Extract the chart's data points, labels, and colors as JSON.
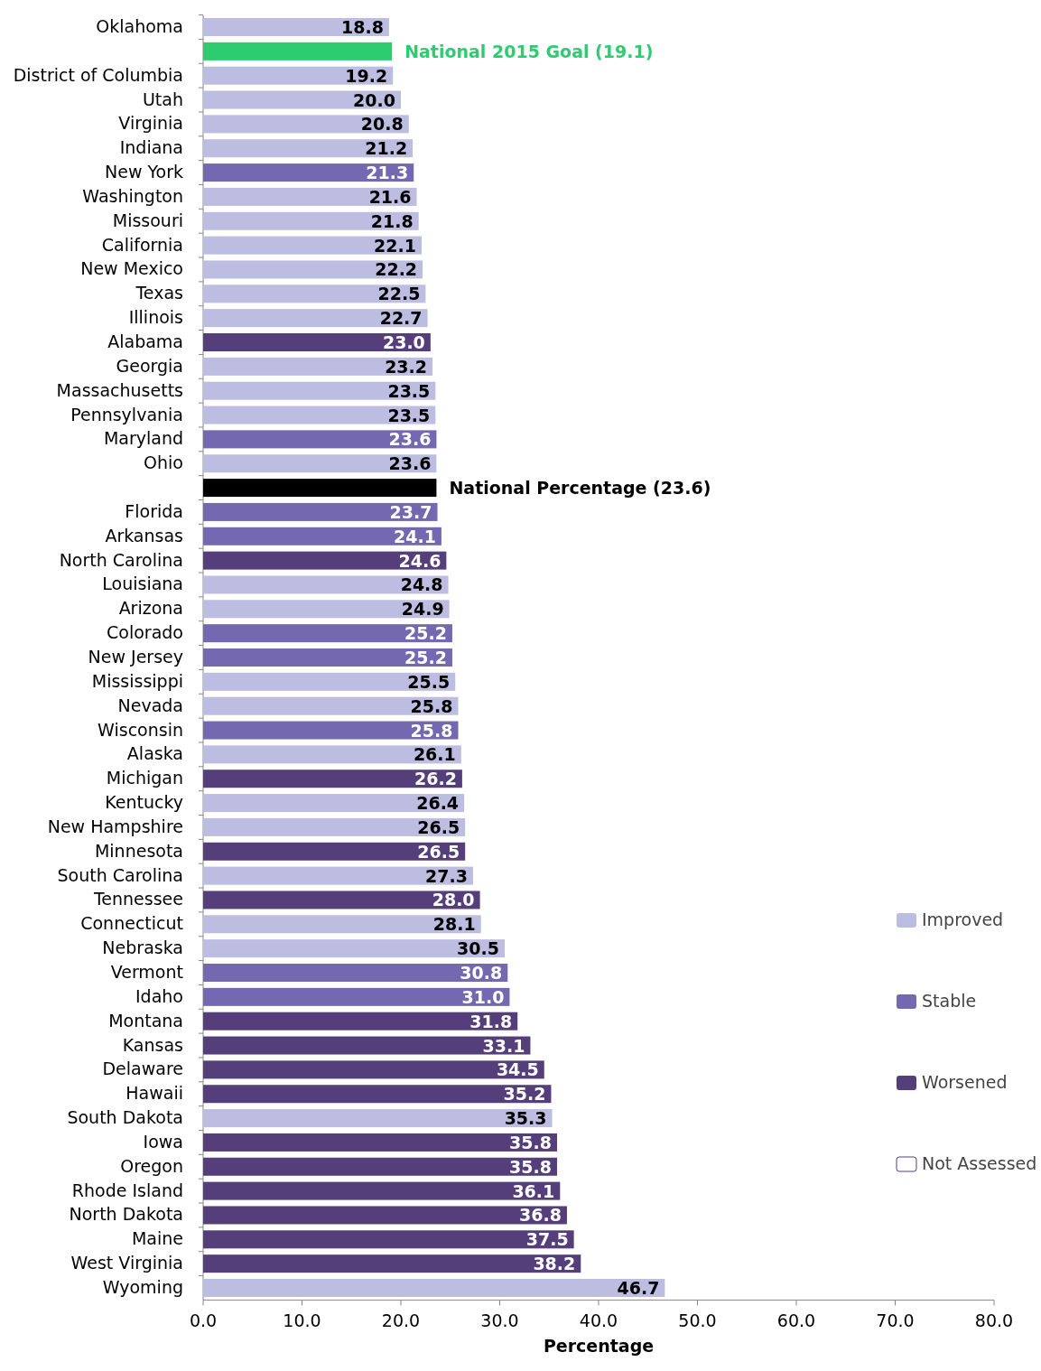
{
  "chart_data": {
    "type": "bar",
    "orientation": "horizontal",
    "xlabel": "Percentage",
    "legend": "right",
    "grid": false,
    "categories": [
      "Oklahoma",
      null,
      "District of Columbia",
      "Utah",
      "Virginia",
      "Indiana",
      "New York",
      "Washington",
      "Missouri",
      "California",
      "New Mexico",
      "Texas",
      "Illinois",
      "Alabama",
      "Georgia",
      "Massachusetts",
      "Pennsylvania",
      "Maryland",
      "Ohio",
      null,
      "Florida",
      "Arkansas",
      "North Carolina",
      "Louisiana",
      "Arizona",
      "Colorado",
      "New Jersey",
      "Mississippi",
      "Nevada",
      "Wisconsin",
      "Alaska",
      "Michigan",
      "Kentucky",
      "New Hampshire",
      "Minnesota",
      "South Carolina",
      "Tennessee",
      "Connecticut",
      "Nebraska",
      "Vermont",
      "Idaho",
      "Montana",
      "Kansas",
      "Delaware",
      "Hawaii",
      "South Dakota",
      "Iowa",
      "Oregon",
      "Rhode Island",
      "North Dakota",
      "Maine",
      "West Virginia",
      "Wyoming"
    ],
    "xlim": [
      0,
      80
    ],
    "xticks": [
      {
        "value": 0,
        "label": "0.0"
      },
      {
        "value": 10,
        "label": "10.0"
      },
      {
        "value": 20,
        "label": "20.0"
      },
      {
        "value": 30,
        "label": "30.0"
      },
      {
        "value": 40,
        "label": "40.0"
      },
      {
        "value": 50,
        "label": "50.0"
      },
      {
        "value": 60,
        "label": "60.0"
      },
      {
        "value": 70,
        "label": "70.0"
      },
      {
        "value": 80,
        "label": "80.0"
      }
    ],
    "series": [
      {
        "name": "Improved",
        "color": "#bcbde0",
        "values": [
          18.8,
          null,
          19.2,
          20.0,
          20.8,
          21.2,
          null,
          21.6,
          21.8,
          22.1,
          22.2,
          22.5,
          22.7,
          null,
          23.2,
          23.5,
          23.5,
          null,
          23.6,
          null,
          null,
          null,
          null,
          24.8,
          24.9,
          null,
          null,
          25.5,
          25.8,
          null,
          26.1,
          null,
          26.4,
          26.5,
          null,
          27.3,
          null,
          28.1,
          30.5,
          null,
          null,
          null,
          null,
          null,
          null,
          35.3,
          null,
          null,
          null,
          null,
          null,
          null,
          46.7
        ],
        "value_labels": [
          "18.8",
          null,
          "19.2",
          "20.0",
          "20.8",
          "21.2",
          null,
          "21.6",
          "21.8",
          "22.1",
          "22.2",
          "22.5",
          "22.7",
          null,
          "23.2",
          "23.5",
          "23.5",
          null,
          "23.6",
          null,
          null,
          null,
          null,
          "24.8",
          "24.9",
          null,
          null,
          "25.5",
          "25.8",
          null,
          "26.1",
          null,
          "26.4",
          "26.5",
          null,
          "27.3",
          null,
          "28.1",
          "30.5",
          null,
          null,
          null,
          null,
          null,
          null,
          "35.3",
          null,
          null,
          null,
          null,
          null,
          null,
          "46.7"
        ]
      },
      {
        "name": "Stable",
        "color": "#7469b0",
        "values": [
          null,
          null,
          null,
          null,
          null,
          null,
          21.3,
          null,
          null,
          null,
          null,
          null,
          null,
          null,
          null,
          null,
          null,
          23.6,
          null,
          null,
          23.7,
          24.1,
          null,
          null,
          null,
          25.2,
          25.2,
          null,
          null,
          25.8,
          null,
          null,
          null,
          null,
          null,
          null,
          null,
          null,
          null,
          30.8,
          31.0,
          null,
          null,
          null,
          null,
          null,
          null,
          null,
          null,
          null,
          null,
          null,
          null
        ],
        "value_labels": [
          null,
          null,
          null,
          null,
          null,
          null,
          "21.3",
          null,
          null,
          null,
          null,
          null,
          null,
          null,
          null,
          null,
          null,
          "23.6",
          null,
          null,
          "23.7",
          "24.1",
          null,
          null,
          null,
          "25.2",
          "25.2",
          null,
          null,
          "25.8",
          null,
          null,
          null,
          null,
          null,
          null,
          null,
          null,
          null,
          "30.8",
          "31.0",
          null,
          null,
          null,
          null,
          null,
          null,
          null,
          null,
          null,
          null,
          null,
          null
        ]
      },
      {
        "name": "Worsened",
        "color": "#553f7a",
        "values": [
          null,
          null,
          null,
          null,
          null,
          null,
          null,
          null,
          null,
          null,
          null,
          null,
          null,
          23.0,
          null,
          null,
          null,
          null,
          null,
          null,
          null,
          null,
          24.6,
          null,
          null,
          null,
          null,
          null,
          null,
          null,
          null,
          26.2,
          null,
          null,
          26.5,
          null,
          28.0,
          null,
          null,
          null,
          null,
          31.8,
          33.1,
          34.5,
          35.2,
          null,
          35.8,
          35.8,
          36.1,
          36.8,
          37.5,
          38.2,
          null
        ],
        "value_labels": [
          null,
          null,
          null,
          null,
          null,
          null,
          null,
          null,
          null,
          null,
          null,
          null,
          null,
          "23.0",
          null,
          null,
          null,
          null,
          null,
          null,
          null,
          null,
          "24.6",
          null,
          null,
          null,
          null,
          null,
          null,
          null,
          null,
          "26.2",
          null,
          null,
          "26.5",
          null,
          "28.0",
          null,
          null,
          null,
          null,
          "31.8",
          "33.1",
          "34.5",
          "35.2",
          null,
          "35.8",
          "35.8",
          "36.1",
          "36.8",
          "37.5",
          "38.2",
          null
        ]
      },
      {
        "name": "Not Assessed",
        "color": "#ffffff",
        "values": [
          null,
          null,
          null,
          null,
          null,
          null,
          null,
          null,
          null,
          null,
          null,
          null,
          null,
          null,
          null,
          null,
          null,
          null,
          null,
          null,
          null,
          null,
          null,
          null,
          null,
          null,
          null,
          null,
          null,
          null,
          null,
          null,
          null,
          null,
          null,
          null,
          null,
          null,
          null,
          null,
          null,
          null,
          null,
          null,
          null,
          null,
          null,
          null,
          null,
          null,
          null,
          null,
          null
        ]
      },
      {
        "color": "#2ecc71",
        "values": [
          null,
          19.1,
          null,
          null,
          null,
          null,
          null,
          null,
          null,
          null,
          null,
          null,
          null,
          null,
          null,
          null,
          null,
          null,
          null,
          null,
          null,
          null,
          null,
          null,
          null,
          null,
          null,
          null,
          null,
          null,
          null,
          null,
          null,
          null,
          null,
          null,
          null,
          null,
          null,
          null,
          null,
          null,
          null,
          null,
          null,
          null,
          null,
          null,
          null,
          null,
          null,
          null,
          null
        ],
        "value_labels": [
          null,
          "National 2015 Goal  (19.1)",
          null,
          null,
          null,
          null,
          null,
          null,
          null,
          null,
          null,
          null,
          null,
          null,
          null,
          null,
          null,
          null,
          null,
          null,
          null,
          null,
          null,
          null,
          null,
          null,
          null,
          null,
          null,
          null,
          null,
          null,
          null,
          null,
          null,
          null,
          null,
          null,
          null,
          null,
          null,
          null,
          null,
          null,
          null,
          null,
          null,
          null,
          null,
          null,
          null,
          null,
          null
        ]
      },
      {
        "color": "#000000",
        "values": [
          null,
          null,
          null,
          null,
          null,
          null,
          null,
          null,
          null,
          null,
          null,
          null,
          null,
          null,
          null,
          null,
          null,
          null,
          null,
          23.6,
          null,
          null,
          null,
          null,
          null,
          null,
          null,
          null,
          null,
          null,
          null,
          null,
          null,
          null,
          null,
          null,
          null,
          null,
          null,
          null,
          null,
          null,
          null,
          null,
          null,
          null,
          null,
          null,
          null,
          null,
          null,
          null,
          null
        ],
        "value_labels": [
          null,
          null,
          null,
          null,
          null,
          null,
          null,
          null,
          null,
          null,
          null,
          null,
          null,
          null,
          null,
          null,
          null,
          null,
          null,
          "National Percentage (23.6)",
          null,
          null,
          null,
          null,
          null,
          null,
          null,
          null,
          null,
          null,
          null,
          null,
          null,
          null,
          null,
          null,
          null,
          null,
          null,
          null,
          null,
          null,
          null,
          null,
          null,
          null,
          null,
          null,
          null,
          null,
          null,
          null,
          null
        ]
      }
    ]
  }
}
